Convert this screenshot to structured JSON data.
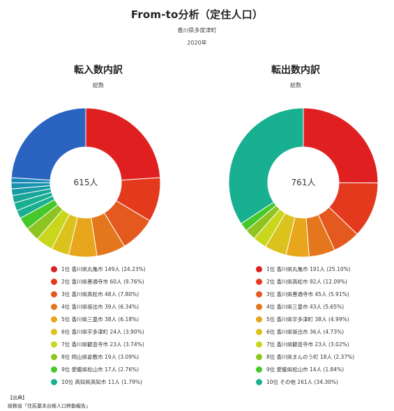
{
  "header": {
    "title": "From-to分析（定住人口）",
    "region": "香川県多度津町",
    "year": "2020年"
  },
  "footer": {
    "label": "【出典】",
    "source": "総務省「住民基本台帳人口移動報告」"
  },
  "colors": [
    "#e02020",
    "#e33a1e",
    "#e45a1e",
    "#e4771e",
    "#e8a61c",
    "#dcc21c",
    "#c8d61c",
    "#8ec422",
    "#46c82a",
    "#18b090"
  ],
  "chart_data": [
    {
      "type": "pie",
      "title": "転入数内訳",
      "subtitle": "総数",
      "center_label": "615人",
      "total": 615,
      "unit": "人",
      "other_color": "#2a64c0",
      "legend": [
        {
          "rank": "1位",
          "name": "香川県丸亀市",
          "count": "149人",
          "share": "(24.23%)"
        },
        {
          "rank": "2位",
          "name": "香川県善通寺市",
          "count": "60人",
          "share": "(9.76%)"
        },
        {
          "rank": "3位",
          "name": "香川県高松市",
          "count": "48人",
          "share": "(7.80%)"
        },
        {
          "rank": "4位",
          "name": "香川県坂出市",
          "count": "39人",
          "share": "(6.34%)"
        },
        {
          "rank": "5位",
          "name": "香川県三豊市",
          "count": "38人",
          "share": "(6.18%)"
        },
        {
          "rank": "6位",
          "name": "香川県宇多津町",
          "count": "24人",
          "share": "(3.90%)"
        },
        {
          "rank": "7位",
          "name": "香川県観音寺市",
          "count": "23人",
          "share": "(3.74%)"
        },
        {
          "rank": "8位",
          "name": "岡山県倉敷市",
          "count": "19人",
          "share": "(3.09%)"
        },
        {
          "rank": "9位",
          "name": "愛媛県松山市",
          "count": "17人",
          "share": "(2.76%)"
        },
        {
          "rank": "10位",
          "name": "高知県高知市",
          "count": "11人",
          "share": "(1.79%)"
        }
      ],
      "values": [
        149,
        60,
        48,
        39,
        38,
        24,
        23,
        19,
        17,
        11
      ],
      "minor_values": [
        11,
        10,
        9,
        8,
        7
      ],
      "other_value": 149
    },
    {
      "type": "pie",
      "title": "転出数内訳",
      "subtitle": "総数",
      "center_label": "761人",
      "total": 761,
      "unit": "人",
      "legend": [
        {
          "rank": "1位",
          "name": "香川県丸亀市",
          "count": "191人",
          "share": "(25.10%)"
        },
        {
          "rank": "2位",
          "name": "香川県高松市",
          "count": "92人",
          "share": "(12.09%)"
        },
        {
          "rank": "3位",
          "name": "香川県善通寺市",
          "count": "45人",
          "share": "(5.91%)"
        },
        {
          "rank": "4位",
          "name": "香川県三豊市",
          "count": "43人",
          "share": "(5.65%)"
        },
        {
          "rank": "5位",
          "name": "香川県宇多津町",
          "count": "38人",
          "share": "(4.99%)"
        },
        {
          "rank": "6位",
          "name": "香川県坂出市",
          "count": "36人",
          "share": "(4.73%)"
        },
        {
          "rank": "7位",
          "name": "香川県観音寺市",
          "count": "23人",
          "share": "(3.02%)"
        },
        {
          "rank": "8位",
          "name": "香川県まんのう町",
          "count": "18人",
          "share": "(2.37%)"
        },
        {
          "rank": "9位",
          "name": "愛媛県松山市",
          "count": "14人",
          "share": "(1.84%)"
        },
        {
          "rank": "10位",
          "name": "その他",
          "count": "261人",
          "share": "(34.30%)"
        }
      ],
      "values": [
        191,
        92,
        45,
        43,
        38,
        36,
        23,
        18,
        14,
        261
      ]
    }
  ]
}
